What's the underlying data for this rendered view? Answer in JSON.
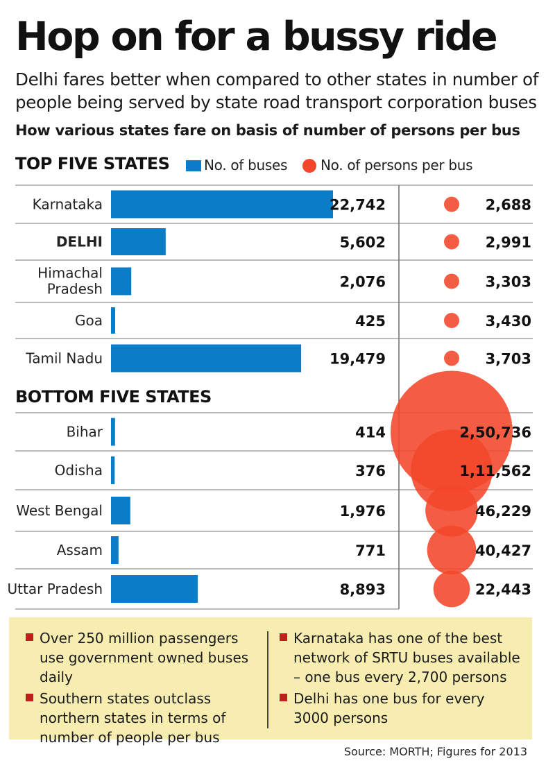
{
  "title": "Hop on for a bussy ride",
  "subtitle": "Delhi fares better when compared to other states in number of people being served by state road transport corporation buses",
  "question": "How various states fare on basis of number of persons per bus",
  "top_heading": "TOP FIVE STATES",
  "bottom_heading": "BOTTOM FIVE STATES",
  "colors": {
    "bar": "#0a7cc8",
    "bubble": "#f2472a",
    "footer_bg": "#f7edb0",
    "bullet": "#c0201b"
  },
  "chart_data": {
    "type": "bar",
    "legend": [
      "No. of buses",
      "No. of persons per bus"
    ],
    "groups": [
      {
        "name": "TOP FIVE STATES",
        "rows": [
          {
            "state": "Karnataka",
            "buses": 22742,
            "buses_label": "22,742",
            "persons": 2688,
            "persons_label": "2,688",
            "bold": false
          },
          {
            "state": "DELHI",
            "buses": 5602,
            "buses_label": "5,602",
            "persons": 2991,
            "persons_label": "2,991",
            "bold": true
          },
          {
            "state": "Himachal Pradesh",
            "buses": 2076,
            "buses_label": "2,076",
            "persons": 3303,
            "persons_label": "3,303",
            "bold": false
          },
          {
            "state": "Goa",
            "buses": 425,
            "buses_label": "425",
            "persons": 3430,
            "persons_label": "3,430",
            "bold": false
          },
          {
            "state": "Tamil Nadu",
            "buses": 19479,
            "buses_label": "19,479",
            "persons": 3703,
            "persons_label": "3,703",
            "bold": false
          }
        ]
      },
      {
        "name": "BOTTOM FIVE STATES",
        "rows": [
          {
            "state": "Bihar",
            "buses": 414,
            "buses_label": "414",
            "persons": 250736,
            "persons_label": "2,50,736",
            "bold": false
          },
          {
            "state": "Odisha",
            "buses": 376,
            "buses_label": "376",
            "persons": 111562,
            "persons_label": "1,11,562",
            "bold": false
          },
          {
            "state": "West Bengal",
            "buses": 1976,
            "buses_label": "1,976",
            "persons": 46229,
            "persons_label": "46,229",
            "bold": false
          },
          {
            "state": "Assam",
            "buses": 771,
            "buses_label": "771",
            "persons": 40427,
            "persons_label": "40,427",
            "bold": false
          },
          {
            "state": "Uttar Pradesh",
            "buses": 8893,
            "buses_label": "8,893",
            "persons": 22443,
            "persons_label": "22,443",
            "bold": false
          }
        ]
      }
    ]
  },
  "footer": {
    "left": [
      "Over 250 million passengers use government owned buses daily",
      "Southern states outclass northern states in terms of number of people per bus"
    ],
    "right": [
      "Karnataka has one of the best network of SRTU buses available – one bus every 2,700 persons",
      "Delhi has one bus for every 3000 persons"
    ]
  },
  "source": "Source: MORTH; Figures for 2013"
}
